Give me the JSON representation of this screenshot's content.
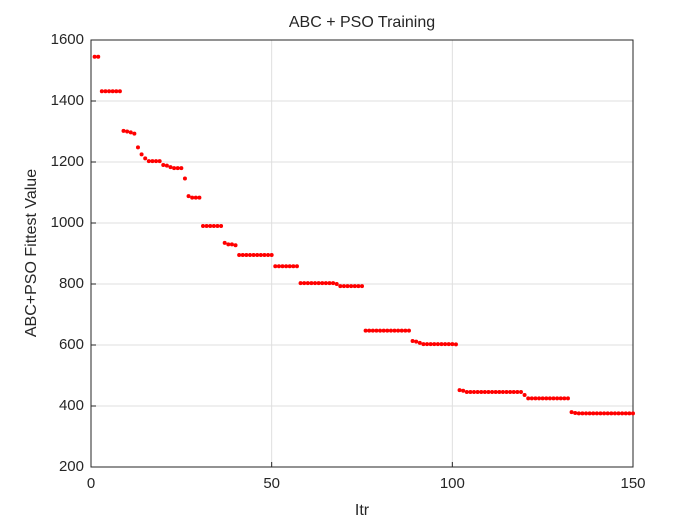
{
  "chart_data": {
    "type": "scatter",
    "title": "ABC + PSO Training",
    "x_label": "Itr",
    "y_label": "ABC+PSO Fittest Value",
    "x": [
      1,
      2,
      3,
      4,
      5,
      6,
      7,
      8,
      9,
      10,
      11,
      12,
      13,
      14,
      15,
      16,
      17,
      18,
      19,
      20,
      21,
      22,
      23,
      24,
      25,
      26,
      27,
      28,
      29,
      30,
      31,
      32,
      33,
      34,
      35,
      36,
      37,
      38,
      39,
      40,
      41,
      42,
      43,
      44,
      45,
      46,
      47,
      48,
      49,
      50,
      51,
      52,
      53,
      54,
      55,
      56,
      57,
      58,
      59,
      60,
      61,
      62,
      63,
      64,
      65,
      66,
      67,
      68,
      69,
      70,
      71,
      72,
      73,
      74,
      75,
      76,
      77,
      78,
      79,
      80,
      81,
      82,
      83,
      84,
      85,
      86,
      87,
      88,
      89,
      90,
      91,
      92,
      93,
      94,
      95,
      96,
      97,
      98,
      99,
      100,
      101,
      102,
      103,
      104,
      105,
      106,
      107,
      108,
      109,
      110,
      111,
      112,
      113,
      114,
      115,
      116,
      117,
      118,
      119,
      120,
      121,
      122,
      123,
      124,
      125,
      126,
      127,
      128,
      129,
      130,
      131,
      132,
      133,
      134,
      135,
      136,
      137,
      138,
      139,
      140,
      141,
      142,
      143,
      144,
      145,
      146,
      147,
      148,
      149,
      150
    ],
    "series": [
      {
        "name": "ABC+PSO",
        "color": "#ff0000",
        "values": [
          1545,
          1545,
          1432,
          1432,
          1432,
          1432,
          1432,
          1432,
          1302,
          1300,
          1297,
          1293,
          1248,
          1225,
          1212,
          1203,
          1203,
          1203,
          1203,
          1190,
          1188,
          1183,
          1180,
          1180,
          1180,
          1146,
          1088,
          1083,
          1083,
          1083,
          990,
          990,
          990,
          990,
          990,
          990,
          935,
          930,
          930,
          927,
          895,
          895,
          895,
          895,
          895,
          895,
          895,
          895,
          895,
          895,
          858,
          858,
          858,
          858,
          858,
          858,
          858,
          803,
          803,
          803,
          803,
          803,
          803,
          803,
          803,
          803,
          803,
          800,
          793,
          793,
          793,
          793,
          793,
          793,
          793,
          647,
          647,
          647,
          647,
          647,
          647,
          647,
          647,
          647,
          647,
          647,
          647,
          647,
          613,
          611,
          607,
          603,
          603,
          603,
          603,
          603,
          603,
          603,
          603,
          603,
          602,
          452,
          450,
          446,
          446,
          446,
          446,
          446,
          446,
          446,
          446,
          446,
          446,
          446,
          446,
          446,
          446,
          446,
          446,
          436,
          425,
          425,
          425,
          425,
          425,
          425,
          425,
          425,
          425,
          425,
          425,
          425,
          380,
          377,
          376,
          376,
          376,
          376,
          376,
          376,
          376,
          376,
          376,
          376,
          376,
          376,
          376,
          376,
          376,
          376
        ]
      }
    ],
    "xlim": [
      0,
      150
    ],
    "xticks": [
      0,
      50,
      100,
      150
    ],
    "ylim": [
      200,
      1600
    ],
    "yticks": [
      200,
      400,
      600,
      800,
      1000,
      1200,
      1400,
      1600
    ],
    "grid": true
  }
}
